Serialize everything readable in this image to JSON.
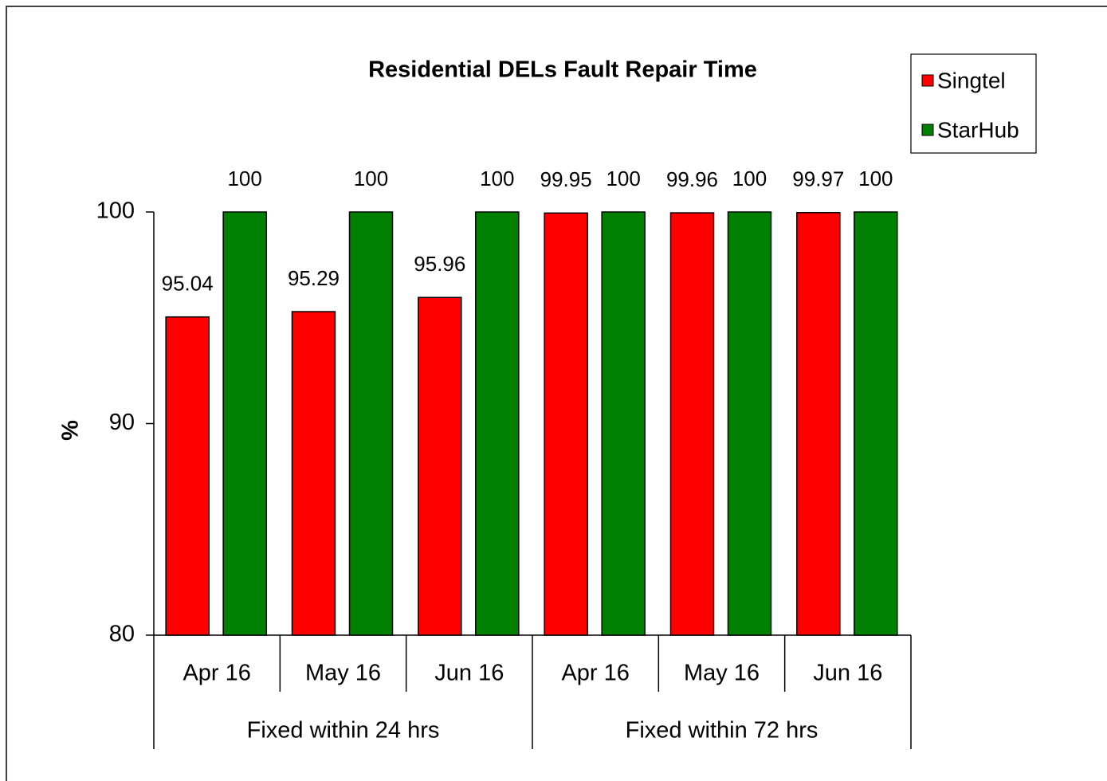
{
  "chart_data": {
    "type": "bar",
    "title": "Residential DELs Fault Repair Time",
    "y_label": "%",
    "groups": [
      {
        "name": "Fixed within 24 hrs",
        "categories": [
          "Apr 16",
          "May 16",
          "Jun 16"
        ]
      },
      {
        "name": "Fixed within 72 hrs",
        "categories": [
          "Apr 16",
          "May 16",
          "Jun 16"
        ]
      }
    ],
    "series": [
      {
        "name": "Singtel",
        "color": "#ff0000",
        "values": [
          95.04,
          95.29,
          95.96,
          99.95,
          99.96,
          99.97
        ]
      },
      {
        "name": "StarHub",
        "color": "#008000",
        "values": [
          100,
          100,
          100,
          100,
          100,
          100
        ]
      }
    ],
    "ylim": [
      80,
      100
    ],
    "yticks": [
      80,
      90,
      100
    ],
    "legend": "top-right"
  }
}
